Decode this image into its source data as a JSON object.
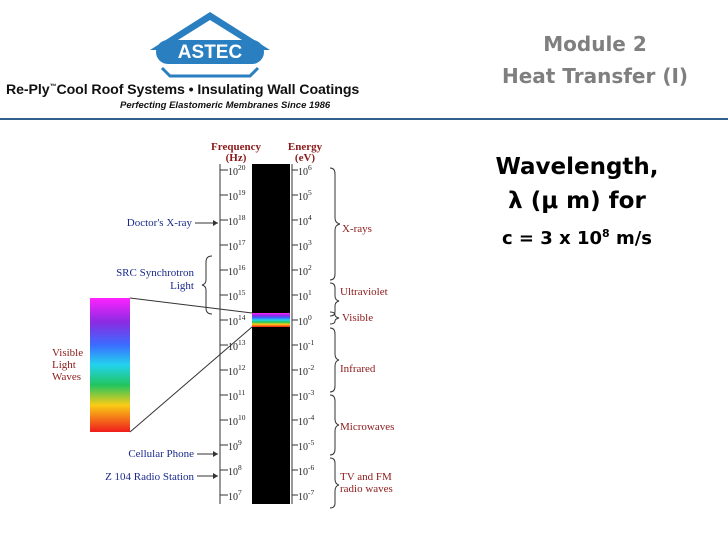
{
  "header": {
    "logo_text": "ASTEC",
    "tagline_brand": "Re-Ply",
    "tagline_tm": "™",
    "tagline_rest": "Cool Roof Systems • Insulating Wall Coatings",
    "subtagline": "Perfecting Elastomeric Membranes Since 1986"
  },
  "title": {
    "line1": "Module 2",
    "line2": "Heat Transfer (I)"
  },
  "content": {
    "line1": "Wavelength,",
    "line2": "λ (μ m) for",
    "eq_prefix": "c = 3 x 10",
    "eq_exp": "8",
    "eq_suffix": " m/s"
  },
  "spectrum": {
    "freq_header": [
      "Frequency",
      "(Hz)"
    ],
    "energy_header": [
      "Energy",
      "(eV)"
    ],
    "freq_exponents": [
      "20",
      "19",
      "18",
      "17",
      "16",
      "15",
      "14",
      "13",
      "12",
      "11",
      "10",
      "9",
      "8",
      "7"
    ],
    "energy_exponents": [
      "6",
      "5",
      "4",
      "3",
      "2",
      "1",
      "0",
      "-1",
      "-2",
      "-3",
      "-4",
      "-5",
      "-6",
      "-7"
    ],
    "tick_base": "10",
    "regions": [
      "X-rays",
      "Ultraviolet",
      "Visible",
      "Infrared",
      "Microwaves",
      "TV and FM",
      "radio waves"
    ],
    "sources": [
      "Doctor's X-ray",
      "SRC Synchrotron",
      "Light",
      "Cellular Phone",
      "Z 104 Radio Station"
    ],
    "visible_label": [
      "Visible",
      "Light",
      "Waves"
    ]
  },
  "colors": {
    "divider": "#2f5f8a",
    "logo_blue": "#2a7fc1",
    "region_label": "#8b1a1a",
    "source_label": "#1a2a8b",
    "title_gray": "#7f7f7f"
  }
}
